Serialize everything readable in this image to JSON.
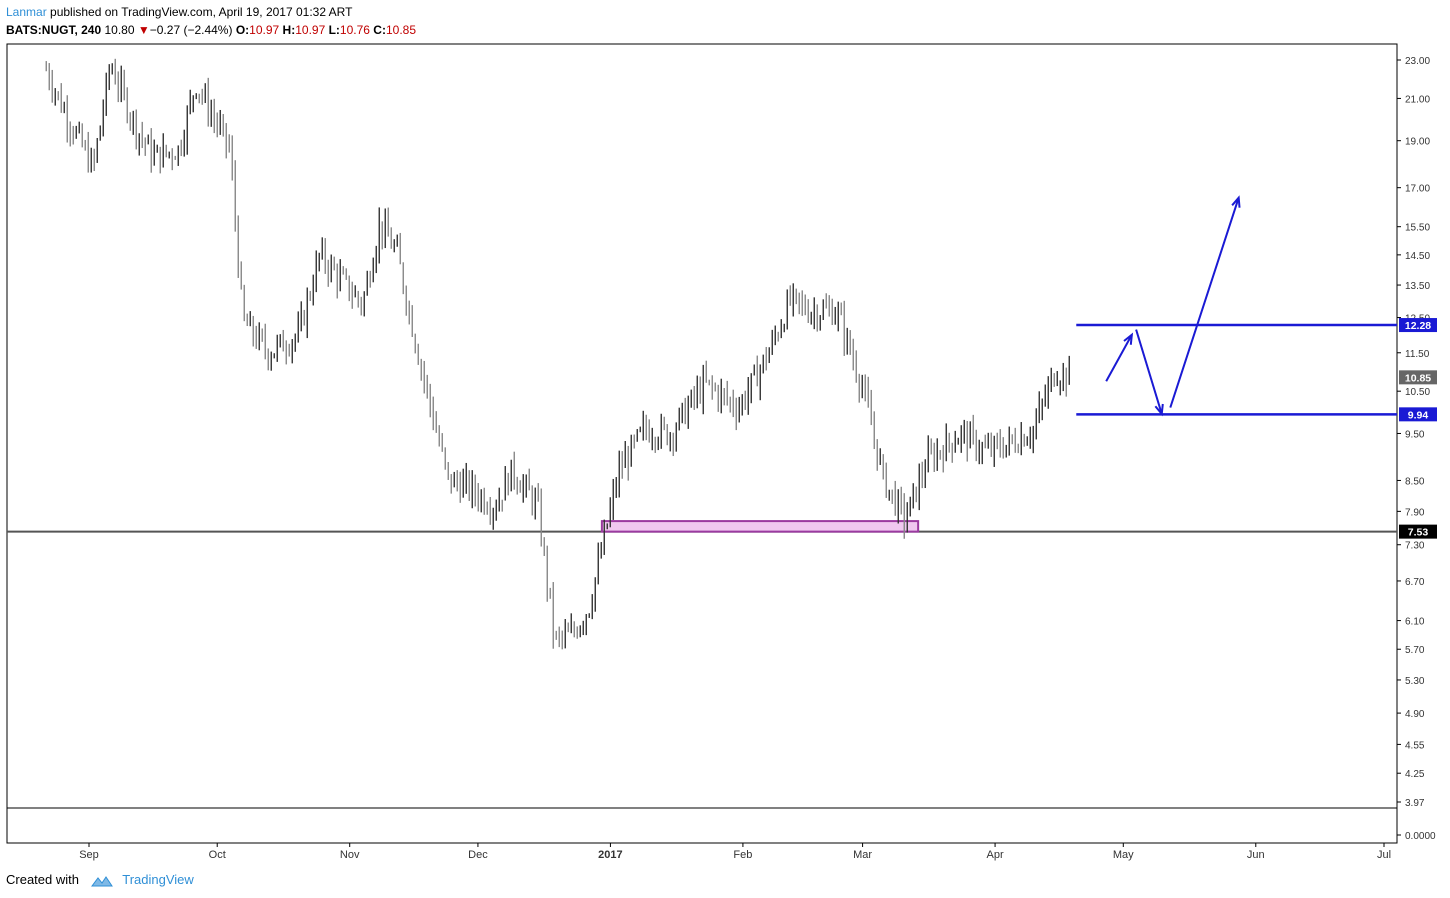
{
  "header": {
    "author": "Lanmar",
    "published_text": "published on TradingView.com, April 19, 2017 01:32 ART",
    "symbol": "BATS:NUGT, 240",
    "last": "10.80",
    "change": "−0.27 (−2.44%)",
    "o_label": "O:",
    "o_value": "10.97",
    "h_label": "H:",
    "h_value": "10.97",
    "l_label": "L:",
    "l_value": "10.76",
    "c_label": "C:",
    "c_value": "10.85"
  },
  "footer": {
    "created_with": "Created with",
    "brand": "TradingView"
  },
  "colors": {
    "bar": "#555555",
    "axis": "#000000",
    "blue": "#1a1ad4",
    "support": "#555555",
    "zone_fill": "#f0c8f0",
    "zone_border": "#9b3aa0",
    "label_dark": "#000000",
    "label_gray": "#666666",
    "label_blue": "#1a1ad4"
  },
  "chart_data": {
    "type": "candlestick",
    "scale": "log",
    "y_ticks": [
      "23.00",
      "21.00",
      "19.00",
      "17.00",
      "15.50",
      "14.50",
      "13.50",
      "12.50",
      "11.50",
      "10.50",
      "9.50",
      "8.50",
      "7.90",
      "7.30",
      "6.70",
      "6.10",
      "5.70",
      "5.30",
      "4.90",
      "4.55",
      "4.25",
      "3.97"
    ],
    "indicator_tick": "0.0000",
    "x_ticks": [
      {
        "label": "Sep",
        "date": "2016-09-01",
        "bold": false
      },
      {
        "label": "Oct",
        "date": "2016-10-01",
        "bold": false
      },
      {
        "label": "Nov",
        "date": "2016-11-01",
        "bold": false
      },
      {
        "label": "Dec",
        "date": "2016-12-01",
        "bold": false
      },
      {
        "label": "2017",
        "date": "2017-01-01",
        "bold": true
      },
      {
        "label": "Feb",
        "date": "2017-02-01",
        "bold": false
      },
      {
        "label": "Mar",
        "date": "2017-03-01",
        "bold": false
      },
      {
        "label": "Apr",
        "date": "2017-04-01",
        "bold": false
      },
      {
        "label": "May",
        "date": "2017-05-01",
        "bold": false
      },
      {
        "label": "Jun",
        "date": "2017-06-01",
        "bold": false
      },
      {
        "label": "Jul",
        "date": "2017-07-01",
        "bold": false
      }
    ],
    "price_path": [
      [
        "2016-08-22",
        22.5
      ],
      [
        "2016-08-26",
        20.5
      ],
      [
        "2016-09-02",
        17.8
      ],
      [
        "2016-09-06",
        22.8
      ],
      [
        "2016-09-12",
        19.6
      ],
      [
        "2016-09-16",
        18.3
      ],
      [
        "2016-09-22",
        18.6
      ],
      [
        "2016-09-26",
        21.8
      ],
      [
        "2016-10-04",
        18.6
      ],
      [
        "2016-10-07",
        12.4
      ],
      [
        "2016-10-13",
        11.5
      ],
      [
        "2016-10-20",
        12.0
      ],
      [
        "2016-10-25",
        14.5
      ],
      [
        "2016-10-31",
        13.5
      ],
      [
        "2016-11-04",
        12.9
      ],
      [
        "2016-11-08",
        15.6
      ],
      [
        "2016-11-12",
        14.6
      ],
      [
        "2016-11-17",
        11.5
      ],
      [
        "2016-11-24",
        8.5
      ],
      [
        "2016-11-28",
        8.4
      ],
      [
        "2016-12-05",
        8.0
      ],
      [
        "2016-12-09",
        8.7
      ],
      [
        "2016-12-15",
        8.0
      ],
      [
        "2016-12-19",
        5.8
      ],
      [
        "2016-12-23",
        5.9
      ],
      [
        "2016-12-27",
        6.3
      ],
      [
        "2017-01-03",
        8.7
      ],
      [
        "2017-01-09",
        9.6
      ],
      [
        "2017-01-15",
        9.5
      ],
      [
        "2017-01-23",
        10.7
      ],
      [
        "2017-01-31",
        10.1
      ],
      [
        "2017-02-07",
        11.5
      ],
      [
        "2017-02-12",
        13.0
      ],
      [
        "2017-02-17",
        12.7
      ],
      [
        "2017-02-23",
        12.7
      ],
      [
        "2017-03-01",
        10.6
      ],
      [
        "2017-03-06",
        8.5
      ],
      [
        "2017-03-11",
        7.75
      ],
      [
        "2017-03-16",
        8.9
      ],
      [
        "2017-03-24",
        9.5
      ],
      [
        "2017-03-30",
        9.1
      ],
      [
        "2017-04-05",
        9.3
      ],
      [
        "2017-04-10",
        9.6
      ],
      [
        "2017-04-15",
        11.0
      ],
      [
        "2017-04-19",
        10.85
      ]
    ],
    "zone": {
      "from": "2016-12-30",
      "to": "2017-03-14",
      "low": 7.53,
      "high": 7.72
    },
    "levels": [
      {
        "price": 12.28,
        "label": "12.28",
        "style": "blue"
      },
      {
        "price": 9.94,
        "label": "9.94",
        "style": "blue"
      },
      {
        "price": 7.53,
        "label": "7.53",
        "style": "dark"
      }
    ],
    "last_price": {
      "price": 10.85,
      "label": "10.85"
    },
    "resistance_line": {
      "from": "2017-04-20",
      "to": "2017-07-15",
      "price": 12.28
    },
    "support_line": {
      "from": "2017-04-20",
      "to": "2017-07-15",
      "price": 9.94
    },
    "horizontal_support": {
      "price": 7.53
    },
    "projection_arrows": [
      {
        "from": [
          "2017-04-27",
          10.75
        ],
        "to": [
          "2017-05-03",
          12.0
        ]
      },
      {
        "from": [
          "2017-05-04",
          12.15
        ],
        "to": [
          "2017-05-10",
          9.95
        ]
      },
      {
        "from": [
          "2017-05-12",
          10.1
        ],
        "to": [
          "2017-05-28",
          16.6
        ]
      }
    ]
  }
}
